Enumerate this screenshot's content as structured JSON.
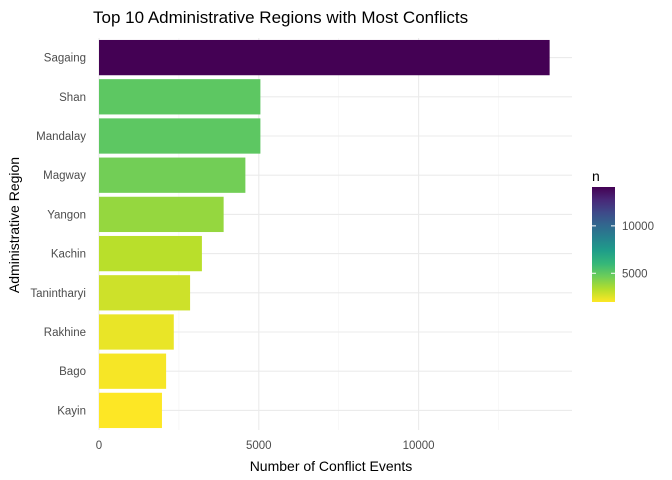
{
  "chart_data": {
    "type": "bar",
    "orientation": "horizontal",
    "title": "Top 10 Administrative Regions with Most Conflicts",
    "xlabel": "Number of Conflict Events",
    "ylabel": "Administrative Region",
    "categories": [
      "Sagaing",
      "Shan",
      "Mandalay",
      "Magway",
      "Yangon",
      "Kachin",
      "Tanintharyi",
      "Rakhine",
      "Bago",
      "Kayin"
    ],
    "values": [
      14100,
      5050,
      5050,
      4580,
      3900,
      3220,
      2850,
      2340,
      2100,
      1970
    ],
    "xlim": [
      0,
      14800
    ],
    "x_ticks": [
      0,
      5000,
      10000
    ],
    "x_tick_labels": [
      "0",
      "5000",
      "10000"
    ],
    "grid": true,
    "legend": {
      "title": "n",
      "position": "right",
      "type": "colorbar",
      "range": [
        1970,
        14100
      ],
      "ticks": [
        5000,
        10000
      ],
      "tick_labels": [
        "5000",
        "10000"
      ],
      "palette": "viridis",
      "low_color": "#FDE725",
      "high_color": "#440154"
    }
  }
}
